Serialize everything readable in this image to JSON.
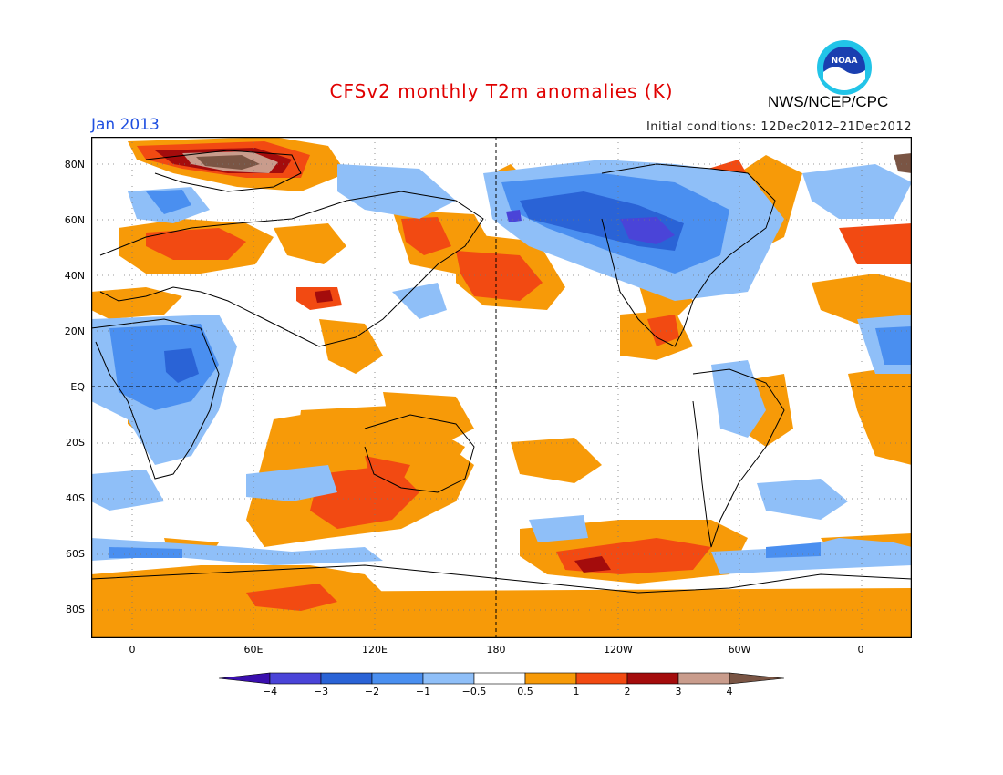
{
  "header": {
    "title": "CFSv2 monthly T2m anomalies (K)",
    "month": "Jan 2013",
    "initial_conditions": "Initial conditions: 12Dec2012–21Dec2012",
    "agency": "NWS/NCEP/CPC",
    "logo_text": "NOAA"
  },
  "map": {
    "projection": "equirectangular, centered 180",
    "lon_labels": [
      "0",
      "60E",
      "120E",
      "180",
      "120W",
      "60W",
      "0"
    ],
    "lat_labels": [
      "80N",
      "60N",
      "40N",
      "20N",
      "EQ",
      "20S",
      "40S",
      "60S",
      "80S"
    ],
    "reference_lines": [
      "EQ dashed",
      "180 dashed"
    ],
    "grid": "dotted"
  },
  "legend": {
    "levels": [
      "−4",
      "−3",
      "−2",
      "−1",
      "−0.5",
      "0.5",
      "1",
      "2",
      "3",
      "4"
    ],
    "colors": [
      "#3a0fae",
      "#4a44d8",
      "#2a63d6",
      "#4a8ff0",
      "#8fbff8",
      "#ffffff",
      "#f79a08",
      "#f24a12",
      "#a40c0c",
      "#c99c8c",
      "#7a5544"
    ]
  }
}
